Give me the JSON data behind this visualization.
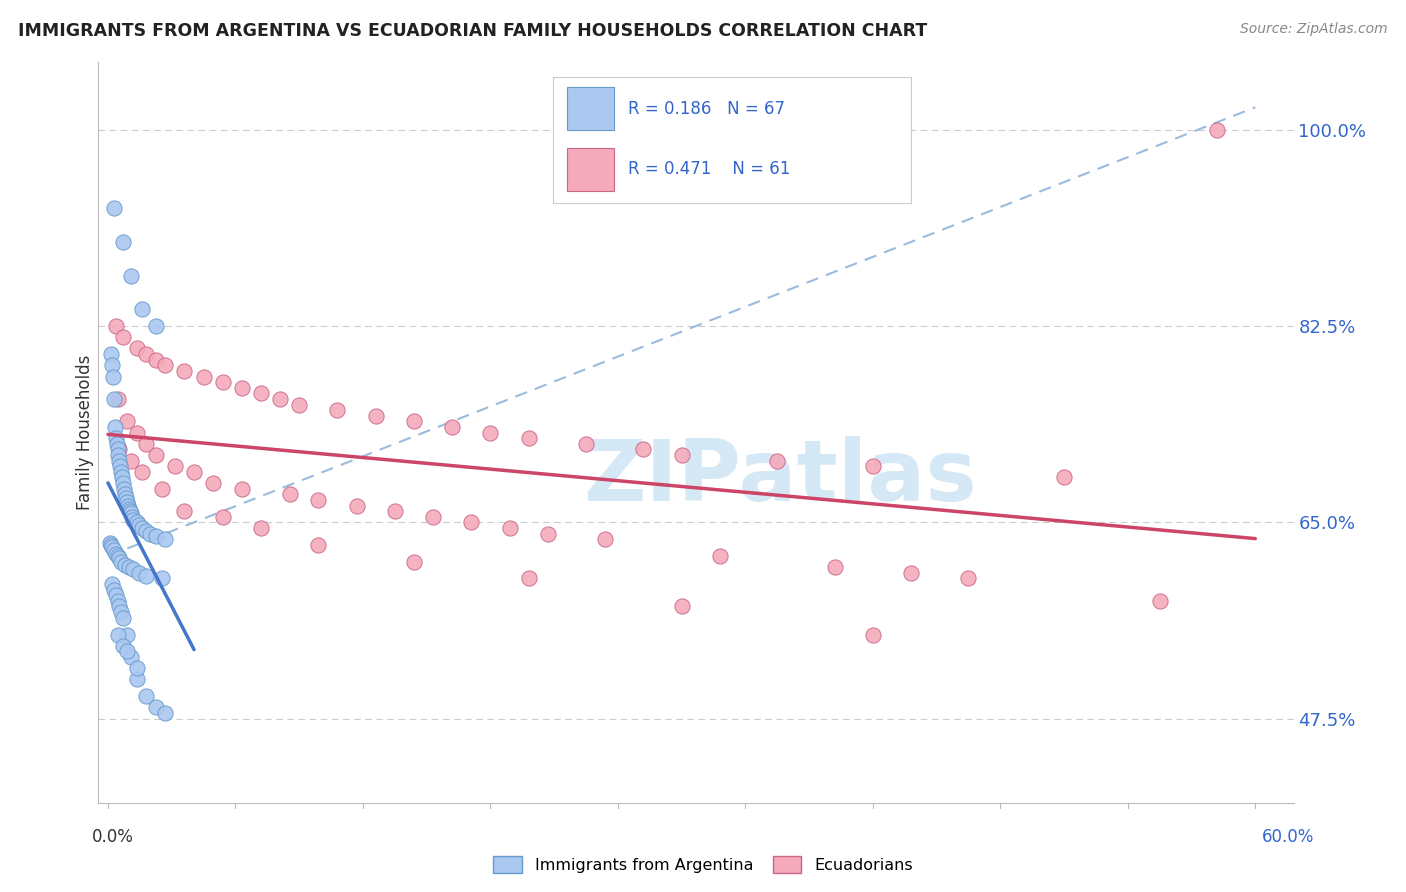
{
  "title": "IMMIGRANTS FROM ARGENTINA VS ECUADORIAN FAMILY HOUSEHOLDS CORRELATION CHART",
  "source": "Source: ZipAtlas.com",
  "ylabel": "Family Households",
  "ytick_vals": [
    47.5,
    65.0,
    82.5,
    100.0
  ],
  "xlim": [
    0.0,
    60.0
  ],
  "ylim": [
    40.0,
    106.0
  ],
  "legend_R_blue": "0.186",
  "legend_N_blue": "67",
  "legend_R_pink": "0.471",
  "legend_N_pink": "61",
  "blue_fill": "#AAC8F0",
  "blue_edge": "#6699CC",
  "pink_fill": "#F4AABB",
  "pink_edge": "#CC6688",
  "blue_line": "#4477CC",
  "pink_line": "#CC4466",
  "dash_color": "#99BBDD",
  "watermark_color": "#D5E8F5",
  "blue_x": [
    0.3,
    0.8,
    1.2,
    1.8,
    2.5,
    0.15,
    0.2,
    0.25,
    0.3,
    0.35,
    0.4,
    0.45,
    0.5,
    0.55,
    0.6,
    0.65,
    0.7,
    0.75,
    0.8,
    0.85,
    0.9,
    0.95,
    1.0,
    1.05,
    1.1,
    1.15,
    1.2,
    1.25,
    1.3,
    1.5,
    1.6,
    1.8,
    2.0,
    2.2,
    2.5,
    3.0,
    0.1,
    0.15,
    0.2,
    0.3,
    0.4,
    0.5,
    0.6,
    0.7,
    0.9,
    1.1,
    1.3,
    1.6,
    2.0,
    2.8,
    0.2,
    0.3,
    0.4,
    0.5,
    0.6,
    0.7,
    0.8,
    1.0,
    1.2,
    1.5,
    2.0,
    2.5,
    3.0,
    0.5,
    0.8,
    1.0,
    1.5
  ],
  "blue_y": [
    93.0,
    90.0,
    87.0,
    84.0,
    82.5,
    80.0,
    79.0,
    78.0,
    76.0,
    73.5,
    72.5,
    72.0,
    71.5,
    71.0,
    70.5,
    70.0,
    69.5,
    69.0,
    68.5,
    68.0,
    67.5,
    67.2,
    66.8,
    66.5,
    66.2,
    66.0,
    65.8,
    65.5,
    65.2,
    65.0,
    64.8,
    64.5,
    64.2,
    64.0,
    63.8,
    63.5,
    63.2,
    63.0,
    62.8,
    62.5,
    62.2,
    62.0,
    61.8,
    61.5,
    61.2,
    61.0,
    60.8,
    60.5,
    60.2,
    60.0,
    59.5,
    59.0,
    58.5,
    58.0,
    57.5,
    57.0,
    56.5,
    55.0,
    53.0,
    51.0,
    49.5,
    48.5,
    48.0,
    55.0,
    54.0,
    53.5,
    52.0
  ],
  "pink_x": [
    0.4,
    0.8,
    1.5,
    2.0,
    2.5,
    3.0,
    4.0,
    5.0,
    6.0,
    7.0,
    8.0,
    9.0,
    10.0,
    12.0,
    14.0,
    16.0,
    18.0,
    20.0,
    22.0,
    25.0,
    28.0,
    30.0,
    35.0,
    40.0,
    50.0,
    0.5,
    1.0,
    1.5,
    2.0,
    2.5,
    3.5,
    4.5,
    5.5,
    7.0,
    9.5,
    11.0,
    13.0,
    15.0,
    17.0,
    19.0,
    21.0,
    23.0,
    26.0,
    32.0,
    38.0,
    42.0,
    45.0,
    55.0,
    0.6,
    1.2,
    1.8,
    2.8,
    4.0,
    6.0,
    8.0,
    11.0,
    16.0,
    22.0,
    30.0,
    40.0,
    58.0
  ],
  "pink_y": [
    82.5,
    81.5,
    80.5,
    80.0,
    79.5,
    79.0,
    78.5,
    78.0,
    77.5,
    77.0,
    76.5,
    76.0,
    75.5,
    75.0,
    74.5,
    74.0,
    73.5,
    73.0,
    72.5,
    72.0,
    71.5,
    71.0,
    70.5,
    70.0,
    69.0,
    76.0,
    74.0,
    73.0,
    72.0,
    71.0,
    70.0,
    69.5,
    68.5,
    68.0,
    67.5,
    67.0,
    66.5,
    66.0,
    65.5,
    65.0,
    64.5,
    64.0,
    63.5,
    62.0,
    61.0,
    60.5,
    60.0,
    58.0,
    71.5,
    70.5,
    69.5,
    68.0,
    66.0,
    65.5,
    64.5,
    63.0,
    61.5,
    60.0,
    57.5,
    55.0,
    100.0
  ]
}
